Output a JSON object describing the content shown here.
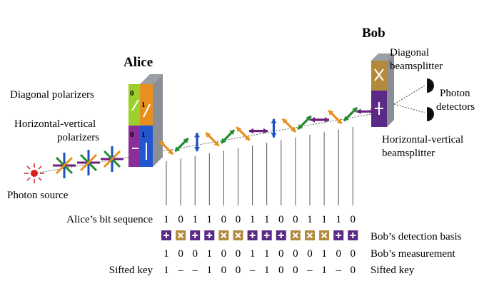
{
  "labels": {
    "bob": "Bob",
    "alice": "Alice",
    "diag_polarizers": "Diagonal polarizers",
    "hv_polarizers_1": "Horizontal-vertical",
    "hv_polarizers_2": "polarizers",
    "photon_source": "Photon source",
    "diag_beamsplitter_1": "Diagonal",
    "diag_beamsplitter_2": "beamsplitter",
    "photon_detectors_1": "Photon",
    "photon_detectors_2": "detectors",
    "hv_beamsplitter_1": "Horizontal-vertical",
    "hv_beamsplitter_2": "beamsplitter",
    "row_alice": "Alice’s bit sequence",
    "row_basis": "Bob’s detection basis",
    "row_measure": "Bob’s measurement",
    "row_sifted_left": "Sifted key",
    "row_sifted_right": "Sifted key"
  },
  "polarizer_bits": {
    "diag_0": "0",
    "diag_1": "1",
    "hv_0": "0",
    "hv_1": "1"
  },
  "detector_bits": {
    "top": "0",
    "bottom": "1"
  },
  "alice_bits": [
    "1",
    "0",
    "1",
    "1",
    "0",
    "0",
    "1",
    "1",
    "0",
    "0",
    "1",
    "1",
    "1",
    "0"
  ],
  "bob_basis": [
    "hv",
    "diag",
    "hv",
    "hv",
    "diag",
    "diag",
    "hv",
    "hv",
    "hv",
    "diag",
    "diag",
    "diag",
    "hv",
    "hv"
  ],
  "bob_measurement": [
    "1",
    "0",
    "0",
    "1",
    "0",
    "0",
    "1",
    "1",
    "0",
    "0",
    "0",
    "1",
    "0",
    "0"
  ],
  "sifted_key": [
    "1",
    "–",
    "–",
    "1",
    "0",
    "0",
    "–",
    "1",
    "0",
    "0",
    "–",
    "1",
    "–",
    "0"
  ],
  "photons": [
    "diag-right",
    "diag-left",
    "vertical",
    "diag-right",
    "diag-left",
    "diag-right",
    "horizontal",
    "vertical",
    "diag-right",
    "diag-left",
    "horizontal",
    "diag-right",
    "diag-left",
    "horizontal"
  ],
  "colors": {
    "purple": "#6a1f7a",
    "orange": "#e8901f",
    "green": "#1e8c2e",
    "blue": "#1e4fc0",
    "red": "#d81f1f",
    "basis_hv": "#5b2a86",
    "basis_diag": "#b38a3c"
  }
}
